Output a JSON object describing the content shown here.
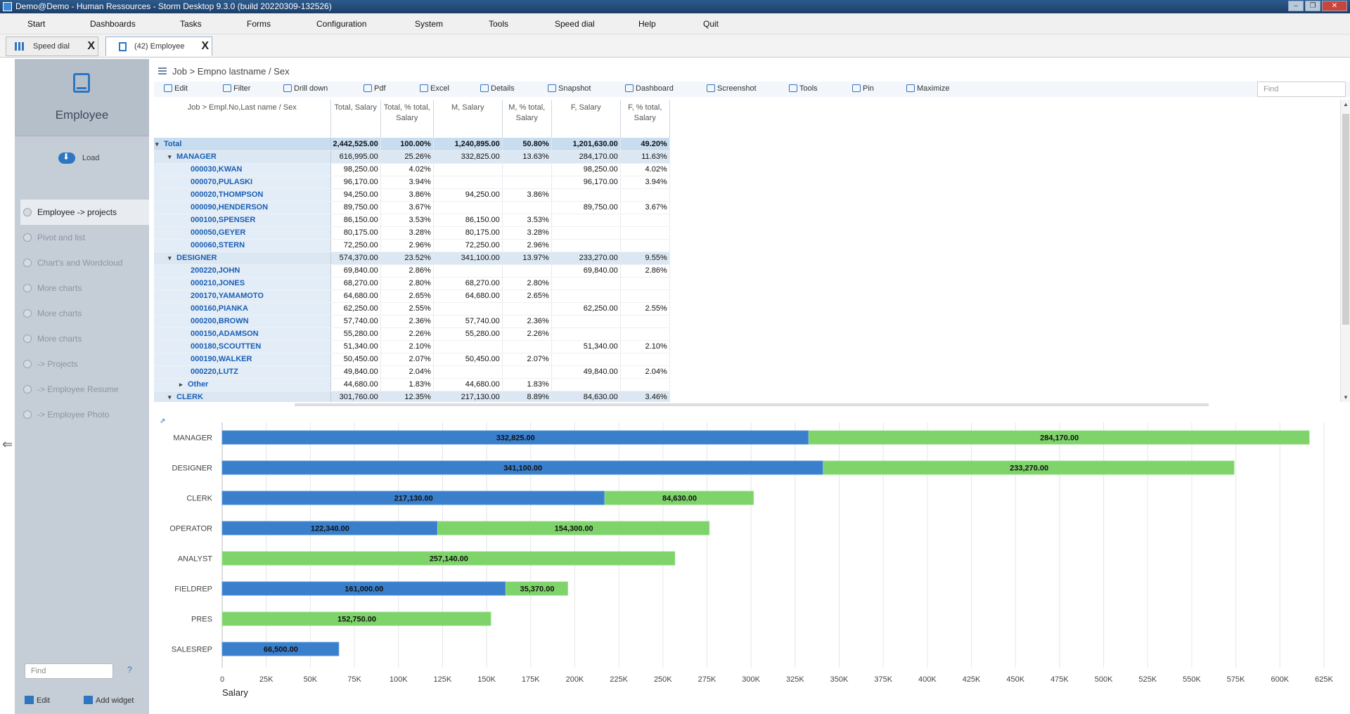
{
  "window": {
    "title": "Demo@Demo - Human Ressources - Storm Desktop 9.3.0 (build 20220309-132526)"
  },
  "menu": [
    "Start",
    "Dashboards",
    "Tasks",
    "Forms",
    "Configuration",
    "System",
    "Tools",
    "Speed dial",
    "Help",
    "Quit"
  ],
  "tabs": [
    {
      "label": "Speed dial",
      "close": "X"
    },
    {
      "label": "(42) Employee",
      "close": "X"
    }
  ],
  "sidebar": {
    "title": "Employee",
    "load": "Load",
    "items": [
      "Employee -> projects",
      "Pivot and list",
      "Chart's and Wordcloud",
      "More charts",
      "More charts",
      "More charts",
      "-> Projects",
      "-> Employee Resume",
      "-> Employee Photo"
    ],
    "find_placeholder": "Find",
    "help": "?",
    "edit": "Edit",
    "add_widget": "Add widget"
  },
  "breadcrumb": "Job > Empno lastname / Sex",
  "toolbar": {
    "items": [
      "Edit",
      "Filter",
      "Drill down",
      "Pdf",
      "Excel",
      "Details",
      "Snapshot",
      "Dashboard",
      "Screenshot",
      "Tools",
      "Pin",
      "Maximize"
    ],
    "find_placeholder": "Find"
  },
  "table": {
    "headers": [
      "Job > Empl.No,Last name / Sex",
      "Total, Salary",
      "Total, % total, Salary",
      "M, Salary",
      "M, % total, Salary",
      "F, Salary",
      "F, % total, Salary"
    ],
    "rows": [
      {
        "level": "total",
        "exp": "▾",
        "label": "Total",
        "cells": [
          "2,442,525.00",
          "100.00%",
          "1,240,895.00",
          "50.80%",
          "1,201,630.00",
          "49.20%"
        ]
      },
      {
        "level": "grp",
        "exp": "▾",
        "label": "MANAGER",
        "cells": [
          "616,995.00",
          "25.26%",
          "332,825.00",
          "13.63%",
          "284,170.00",
          "11.63%"
        ]
      },
      {
        "level": "leaf",
        "label": "000030,KWAN",
        "cells": [
          "98,250.00",
          "4.02%",
          "",
          "",
          "98,250.00",
          "4.02%"
        ]
      },
      {
        "level": "leaf",
        "label": "000070,PULASKI",
        "cells": [
          "96,170.00",
          "3.94%",
          "",
          "",
          "96,170.00",
          "3.94%"
        ]
      },
      {
        "level": "leaf",
        "label": "000020,THOMPSON",
        "cells": [
          "94,250.00",
          "3.86%",
          "94,250.00",
          "3.86%",
          "",
          ""
        ]
      },
      {
        "level": "leaf",
        "label": "000090,HENDERSON",
        "cells": [
          "89,750.00",
          "3.67%",
          "",
          "",
          "89,750.00",
          "3.67%"
        ]
      },
      {
        "level": "leaf",
        "label": "000100,SPENSER",
        "cells": [
          "86,150.00",
          "3.53%",
          "86,150.00",
          "3.53%",
          "",
          ""
        ]
      },
      {
        "level": "leaf",
        "label": "000050,GEYER",
        "cells": [
          "80,175.00",
          "3.28%",
          "80,175.00",
          "3.28%",
          "",
          ""
        ]
      },
      {
        "level": "leaf",
        "label": "000060,STERN",
        "cells": [
          "72,250.00",
          "2.96%",
          "72,250.00",
          "2.96%",
          "",
          ""
        ]
      },
      {
        "level": "grp",
        "exp": "▾",
        "label": "DESIGNER",
        "cells": [
          "574,370.00",
          "23.52%",
          "341,100.00",
          "13.97%",
          "233,270.00",
          "9.55%"
        ]
      },
      {
        "level": "leaf",
        "label": "200220,JOHN",
        "cells": [
          "69,840.00",
          "2.86%",
          "",
          "",
          "69,840.00",
          "2.86%"
        ]
      },
      {
        "level": "leaf",
        "label": "000210,JONES",
        "cells": [
          "68,270.00",
          "2.80%",
          "68,270.00",
          "2.80%",
          "",
          ""
        ]
      },
      {
        "level": "leaf",
        "label": "200170,YAMAMOTO",
        "cells": [
          "64,680.00",
          "2.65%",
          "64,680.00",
          "2.65%",
          "",
          ""
        ]
      },
      {
        "level": "leaf",
        "label": "000160,PIANKA",
        "cells": [
          "62,250.00",
          "2.55%",
          "",
          "",
          "62,250.00",
          "2.55%"
        ]
      },
      {
        "level": "leaf",
        "label": "000200,BROWN",
        "cells": [
          "57,740.00",
          "2.36%",
          "57,740.00",
          "2.36%",
          "",
          ""
        ]
      },
      {
        "level": "leaf",
        "label": "000150,ADAMSON",
        "cells": [
          "55,280.00",
          "2.26%",
          "55,280.00",
          "2.26%",
          "",
          ""
        ]
      },
      {
        "level": "leaf",
        "label": "000180,SCOUTTEN",
        "cells": [
          "51,340.00",
          "2.10%",
          "",
          "",
          "51,340.00",
          "2.10%"
        ]
      },
      {
        "level": "leaf",
        "label": "000190,WALKER",
        "cells": [
          "50,450.00",
          "2.07%",
          "50,450.00",
          "2.07%",
          "",
          ""
        ]
      },
      {
        "level": "leaf",
        "label": "000220,LUTZ",
        "cells": [
          "49,840.00",
          "2.04%",
          "",
          "",
          "49,840.00",
          "2.04%"
        ]
      },
      {
        "level": "leafgrp",
        "exp": "▸",
        "label": "Other",
        "cells": [
          "44,680.00",
          "1.83%",
          "44,680.00",
          "1.83%",
          "",
          ""
        ]
      },
      {
        "level": "grp",
        "exp": "▾",
        "label": "CLERK",
        "cells": [
          "301,760.00",
          "12.35%",
          "217,130.00",
          "8.89%",
          "84,630.00",
          "3.46%"
        ]
      }
    ]
  },
  "chart_data": {
    "type": "bar",
    "orientation": "horizontal",
    "stacked": true,
    "categories": [
      "MANAGER",
      "DESIGNER",
      "CLERK",
      "OPERATOR",
      "ANALYST",
      "FIELDREP",
      "PRES",
      "SALESREP"
    ],
    "series": [
      {
        "values": [
          332825,
          341100,
          217130,
          122340,
          0,
          161000,
          0,
          66500
        ],
        "labels": [
          "332,825.00",
          "341,100.00",
          "217,130.00",
          "122,340.00",
          "",
          "161,000.00",
          "",
          "66,500.00"
        ],
        "color": "#3a7fcc"
      },
      {
        "values": [
          284170,
          233270,
          84630,
          154300,
          257140,
          35370,
          152750,
          0
        ],
        "labels": [
          "284,170.00",
          "233,270.00",
          "84,630.00",
          "154,300.00",
          "257,140.00",
          "35,370.00",
          "152,750.00",
          ""
        ],
        "color": "#7ed36a"
      }
    ],
    "xlabel": "Salary",
    "xlim": [
      0,
      625000
    ],
    "xticks": [
      "0",
      "25K",
      "50K",
      "75K",
      "100K",
      "125K",
      "150K",
      "175K",
      "200K",
      "225K",
      "250K",
      "275K",
      "300K",
      "325K",
      "350K",
      "375K",
      "400K",
      "425K",
      "450K",
      "475K",
      "500K",
      "525K",
      "550K",
      "575K",
      "600K",
      "625K"
    ],
    "grid": true
  }
}
